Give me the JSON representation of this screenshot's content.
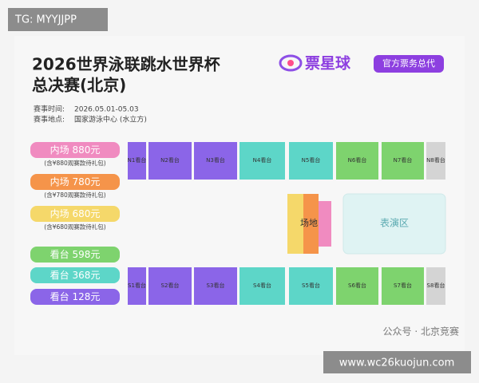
{
  "watermark": "TG: MYYJJPP",
  "header": {
    "title_line1": "2026世界泳联跳水世界杯",
    "title_line2": "总决赛(北京)",
    "logo": "票星球",
    "badge": "官方票务总代",
    "time_label": "赛事时间:",
    "time_value": "2026.05.01-05.03",
    "place_label": "赛事地点:",
    "place_value": "国家游泳中心 (水立方)"
  },
  "tiers": [
    {
      "label": "内场 880元",
      "note": "(含¥880观赛款待礼包)"
    },
    {
      "label": "内场 780元",
      "note": "(含¥780观赛款待礼包)"
    },
    {
      "label": "内场 680元",
      "note": "(含¥680观赛款待礼包)"
    },
    {
      "label": "看台 598元"
    },
    {
      "label": "看台 368元"
    },
    {
      "label": "看台 128元"
    }
  ],
  "north": [
    "N1看台",
    "N2看台",
    "N3看台",
    "N4看台",
    "N5看台",
    "N6看台",
    "N7看台",
    "N8看台"
  ],
  "south": [
    "S1看台",
    "S2看台",
    "S3看台",
    "S4看台",
    "S5看台",
    "S6看台",
    "S7看台",
    "S8看台"
  ],
  "field": "场地",
  "stage": "表演区",
  "footer": {
    "wechat": "公众号 · 北京竞赛",
    "url": "www.wc26kuojun.com"
  }
}
